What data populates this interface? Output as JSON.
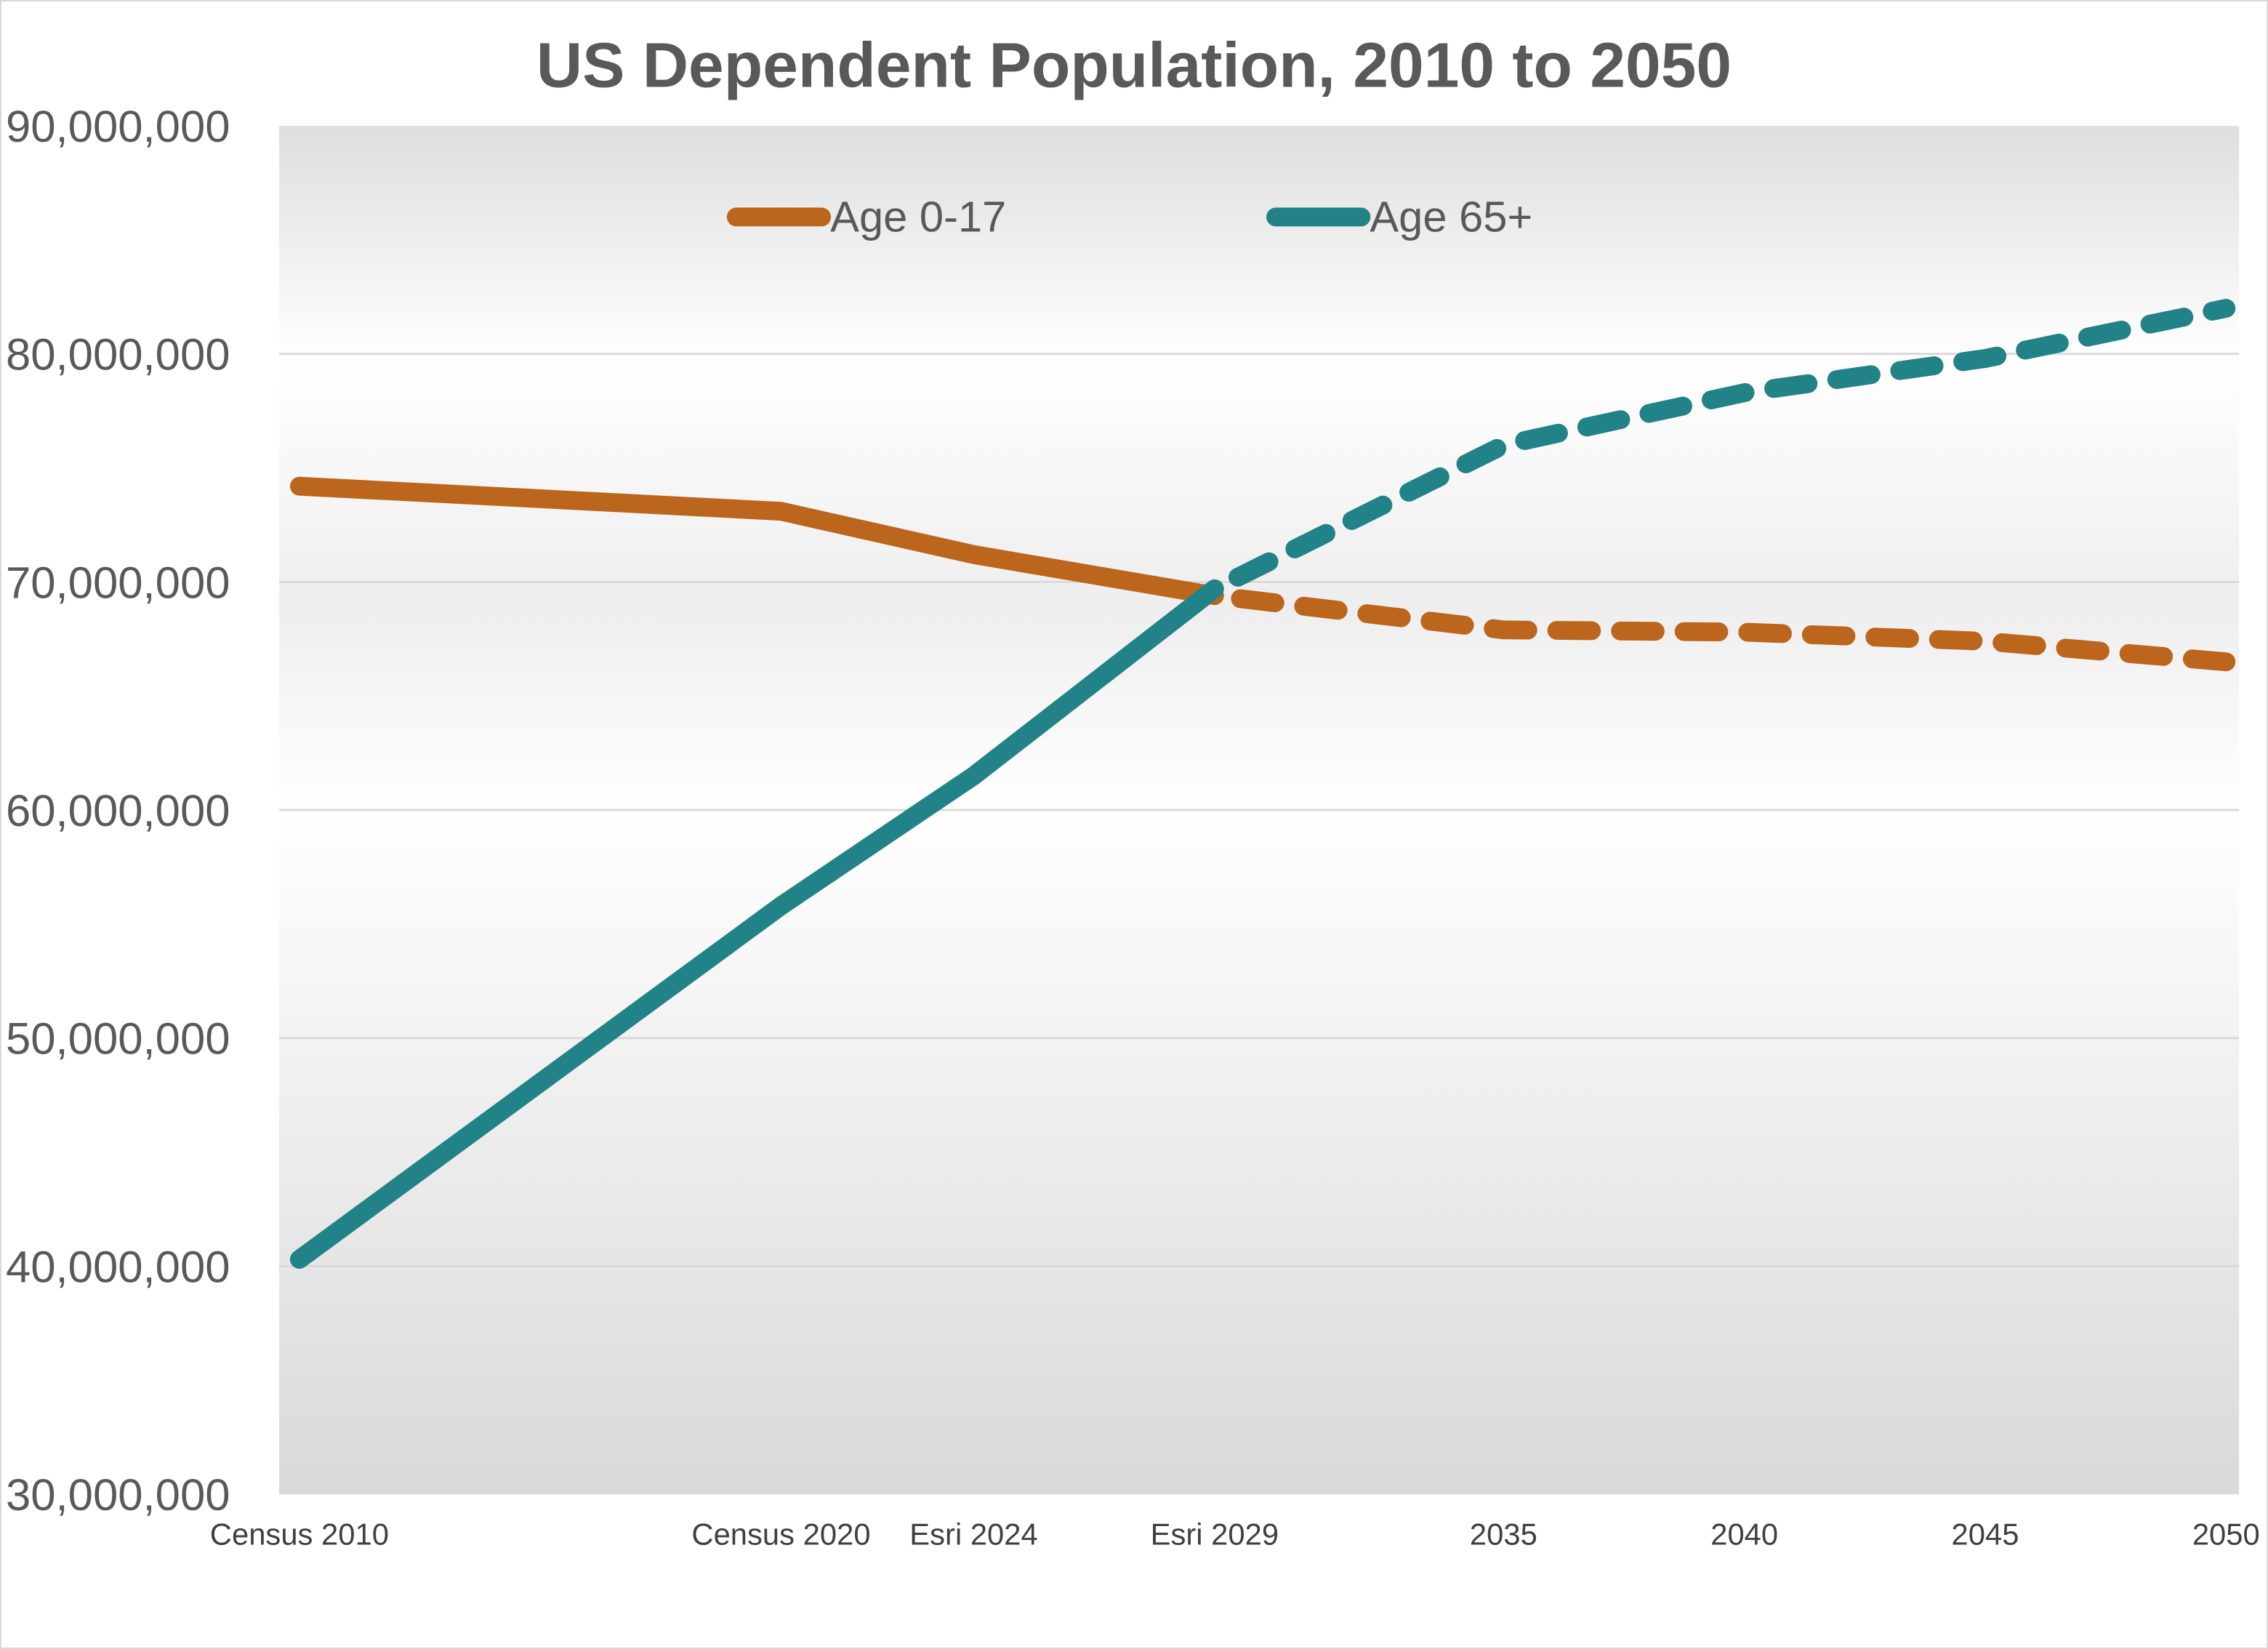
{
  "chart_data": {
    "type": "line",
    "title": "US Dependent Population, 2010 to 2050",
    "xlabel": "",
    "ylabel": "",
    "ylim": [
      30000000,
      90000000
    ],
    "yticks": [
      "30,000,000",
      "40,000,000",
      "50,000,000",
      "60,000,000",
      "70,000,000",
      "80,000,000",
      "90,000,000"
    ],
    "ytick_values": [
      30000000,
      40000000,
      50000000,
      60000000,
      70000000,
      80000000,
      90000000
    ],
    "xticks": [
      {
        "label": "Census 2010",
        "year": 2010
      },
      {
        "label": "Census 2020",
        "year": 2020
      },
      {
        "label": "Esri 2024",
        "year": 2024
      },
      {
        "label": "Esri 2029",
        "year": 2029
      },
      {
        "label": "2035",
        "year": 2035
      },
      {
        "label": "2040",
        "year": 2040
      },
      {
        "label": "2045",
        "year": 2045
      },
      {
        "label": "2050",
        "year": 2050
      }
    ],
    "xlim": [
      2010,
      2050
    ],
    "grid": "horizontal",
    "legend_position": "top",
    "projection_starts_after": 2029,
    "series": [
      {
        "name": "Age 0-17",
        "color": "#BC651C",
        "x": [
          2010,
          2020,
          2024,
          2029,
          2035,
          2040,
          2045,
          2050
        ],
        "values": [
          74200000,
          73100000,
          71200000,
          69400000,
          67900000,
          67800000,
          67400000,
          66500000
        ]
      },
      {
        "name": "Age 65+",
        "color": "#218287",
        "x": [
          2010,
          2020,
          2024,
          2029,
          2035,
          2040,
          2045,
          2050
        ],
        "values": [
          40300000,
          55800000,
          61500000,
          69700000,
          76000000,
          78300000,
          79800000,
          82000000
        ]
      }
    ]
  }
}
